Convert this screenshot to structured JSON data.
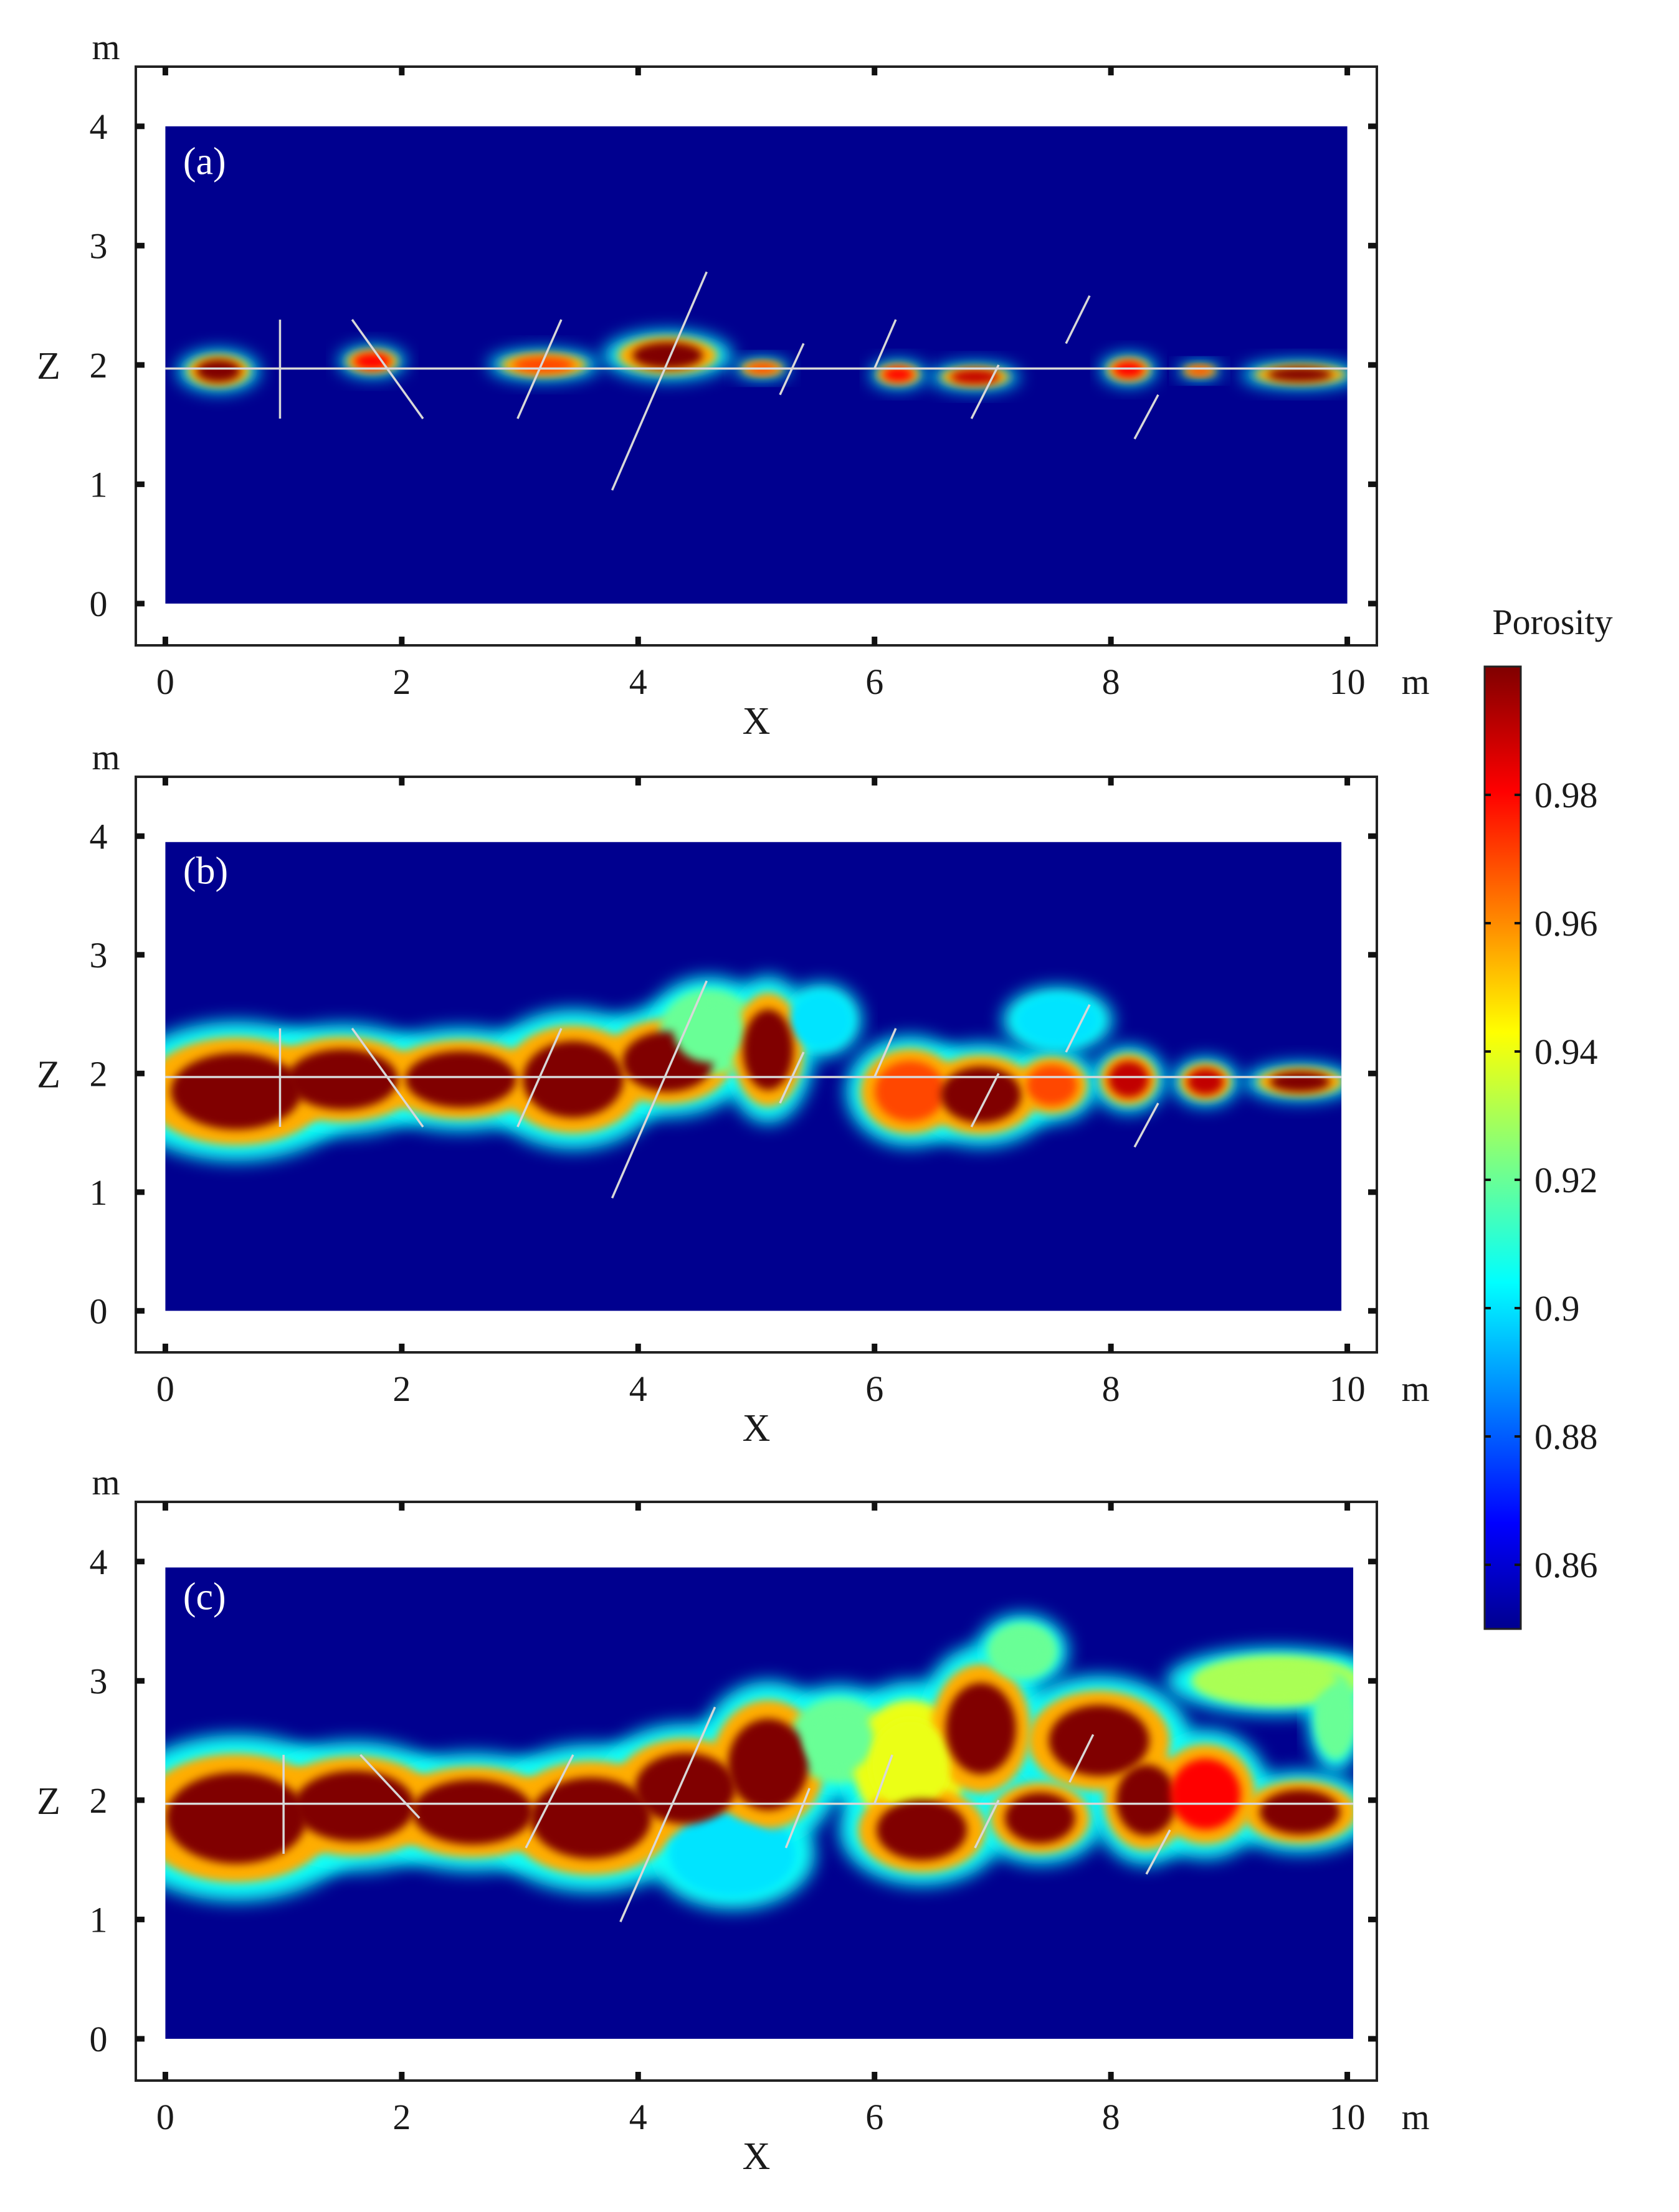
{
  "colors": {
    "background": "#00008f",
    "fracture_line": "#d8d8d8",
    "frame": "#222222"
  },
  "colorbar": {
    "title": "Porosity",
    "min": 0.85,
    "max": 1.0,
    "tick_values": [
      0.86,
      0.88,
      0.9,
      0.92,
      0.94,
      0.96,
      0.98
    ],
    "tick_labels": [
      "0.86",
      "0.88",
      "0.9",
      "0.92",
      "0.94",
      "0.96",
      "0.98"
    ]
  },
  "chart_data": [
    {
      "type": "heatmap",
      "panel_label": "(a)",
      "xlabel": "X",
      "ylabel": "Z",
      "x_unit": "m",
      "y_unit": "m",
      "xlim": [
        -0.25,
        10.25
      ],
      "ylim": [
        -0.35,
        4.5
      ],
      "domain_x": [
        0,
        10
      ],
      "domain_y": [
        0,
        4
      ],
      "x_ticks": [
        0,
        2,
        4,
        6,
        8,
        10
      ],
      "x_tick_labels": [
        "0",
        "2",
        "4",
        "6",
        "8",
        "10"
      ],
      "y_ticks": [
        0,
        1,
        2,
        3,
        4
      ],
      "y_tick_labels": [
        "0",
        "1",
        "2",
        "3",
        "4"
      ],
      "fracture_lines": [
        [
          [
            0,
            1.97
          ],
          [
            10,
            1.97
          ]
        ],
        [
          [
            0.97,
            1.55
          ],
          [
            0.97,
            2.38
          ]
        ],
        [
          [
            1.58,
            2.38
          ],
          [
            2.18,
            1.55
          ]
        ],
        [
          [
            2.98,
            1.55
          ],
          [
            3.35,
            2.38
          ]
        ],
        [
          [
            3.78,
            0.95
          ],
          [
            4.58,
            2.78
          ]
        ],
        [
          [
            5.2,
            1.75
          ],
          [
            5.4,
            2.18
          ]
        ],
        [
          [
            6.0,
            1.97
          ],
          [
            6.18,
            2.38
          ]
        ],
        [
          [
            6.82,
            1.55
          ],
          [
            7.05,
            2.0
          ]
        ],
        [
          [
            7.62,
            2.18
          ],
          [
            7.82,
            2.58
          ]
        ],
        [
          [
            8.2,
            1.38
          ],
          [
            8.4,
            1.75
          ]
        ]
      ],
      "porosity_zones": [
        {
          "x": 0.45,
          "z": 1.95,
          "rx": 0.22,
          "rz": 0.11,
          "porosity": 1.0
        },
        {
          "x": 1.75,
          "z": 2.03,
          "rx": 0.18,
          "rz": 0.08,
          "porosity": 0.98
        },
        {
          "x": 3.2,
          "z": 2.0,
          "rx": 0.3,
          "rz": 0.08,
          "porosity": 0.97
        },
        {
          "x": 4.25,
          "z": 2.08,
          "rx": 0.35,
          "rz": 0.13,
          "porosity": 1.0
        },
        {
          "x": 5.05,
          "z": 1.97,
          "rx": 0.15,
          "rz": 0.05,
          "porosity": 0.97
        },
        {
          "x": 6.2,
          "z": 1.92,
          "rx": 0.15,
          "rz": 0.07,
          "porosity": 0.98
        },
        {
          "x": 6.85,
          "z": 1.9,
          "rx": 0.24,
          "rz": 0.07,
          "porosity": 0.99
        },
        {
          "x": 8.15,
          "z": 1.96,
          "rx": 0.15,
          "rz": 0.08,
          "porosity": 0.98
        },
        {
          "x": 8.75,
          "z": 1.95,
          "rx": 0.12,
          "rz": 0.04,
          "porosity": 0.97
        },
        {
          "x": 9.6,
          "z": 1.92,
          "rx": 0.32,
          "rz": 0.07,
          "porosity": 1.0
        }
      ]
    },
    {
      "type": "heatmap",
      "panel_label": "(b)",
      "xlabel": "X",
      "ylabel": "Z",
      "x_unit": "m",
      "y_unit": "m",
      "xlim": [
        -0.25,
        10.25
      ],
      "ylim": [
        -0.35,
        4.5
      ],
      "domain_x": [
        0,
        9.95
      ],
      "domain_y": [
        0,
        3.95
      ],
      "x_ticks": [
        0,
        2,
        4,
        6,
        8,
        10
      ],
      "x_tick_labels": [
        "0",
        "2",
        "4",
        "6",
        "8",
        "10"
      ],
      "y_ticks": [
        0,
        1,
        2,
        3,
        4
      ],
      "y_tick_labels": [
        "0",
        "1",
        "2",
        "3",
        "4"
      ],
      "fracture_lines": [
        [
          [
            0,
            1.97
          ],
          [
            9.95,
            1.97
          ]
        ],
        [
          [
            0.97,
            1.55
          ],
          [
            0.97,
            2.38
          ]
        ],
        [
          [
            1.58,
            2.38
          ],
          [
            2.18,
            1.55
          ]
        ],
        [
          [
            2.98,
            1.55
          ],
          [
            3.35,
            2.38
          ]
        ],
        [
          [
            3.78,
            0.95
          ],
          [
            4.58,
            2.78
          ]
        ],
        [
          [
            5.2,
            1.75
          ],
          [
            5.4,
            2.18
          ]
        ],
        [
          [
            6.0,
            1.97
          ],
          [
            6.18,
            2.38
          ]
        ],
        [
          [
            6.82,
            1.55
          ],
          [
            7.05,
            2.0
          ]
        ],
        [
          [
            7.62,
            2.18
          ],
          [
            7.82,
            2.58
          ]
        ],
        [
          [
            8.2,
            1.38
          ],
          [
            8.4,
            1.75
          ]
        ]
      ],
      "porosity_zones": [
        {
          "x": 0.6,
          "z": 1.85,
          "rx": 0.65,
          "rz": 0.38,
          "porosity": 1.0
        },
        {
          "x": 1.5,
          "z": 1.95,
          "rx": 0.55,
          "rz": 0.3,
          "porosity": 1.0
        },
        {
          "x": 2.5,
          "z": 1.95,
          "rx": 0.55,
          "rz": 0.28,
          "porosity": 1.0
        },
        {
          "x": 3.45,
          "z": 1.95,
          "rx": 0.5,
          "rz": 0.38,
          "porosity": 1.0
        },
        {
          "x": 4.25,
          "z": 2.1,
          "rx": 0.45,
          "rz": 0.3,
          "porosity": 1.0
        },
        {
          "x": 4.6,
          "z": 2.35,
          "rx": 0.35,
          "rz": 0.3,
          "porosity": 0.92
        },
        {
          "x": 5.1,
          "z": 2.2,
          "rx": 0.25,
          "rz": 0.4,
          "porosity": 1.0
        },
        {
          "x": 5.55,
          "z": 2.45,
          "rx": 0.22,
          "rz": 0.2,
          "porosity": 0.9
        },
        {
          "x": 6.3,
          "z": 1.85,
          "rx": 0.35,
          "rz": 0.3,
          "porosity": 0.97
        },
        {
          "x": 6.9,
          "z": 1.82,
          "rx": 0.4,
          "rz": 0.28,
          "porosity": 1.0
        },
        {
          "x": 7.5,
          "z": 1.9,
          "rx": 0.25,
          "rz": 0.2,
          "porosity": 0.97
        },
        {
          "x": 7.55,
          "z": 2.45,
          "rx": 0.3,
          "rz": 0.18,
          "porosity": 0.9
        },
        {
          "x": 8.15,
          "z": 1.95,
          "rx": 0.2,
          "rz": 0.18,
          "porosity": 0.99
        },
        {
          "x": 8.8,
          "z": 1.93,
          "rx": 0.18,
          "rz": 0.13,
          "porosity": 0.99
        },
        {
          "x": 9.6,
          "z": 1.93,
          "rx": 0.3,
          "rz": 0.1,
          "porosity": 1.0
        }
      ]
    },
    {
      "type": "heatmap",
      "panel_label": "(c)",
      "xlabel": "X",
      "ylabel": "Z",
      "x_unit": "m",
      "y_unit": "m",
      "xlim": [
        -0.25,
        10.25
      ],
      "ylim": [
        -0.35,
        4.5
      ],
      "domain_x": [
        0,
        10.05
      ],
      "domain_y": [
        0,
        3.95
      ],
      "x_ticks": [
        0,
        2,
        4,
        6,
        8,
        10
      ],
      "x_tick_labels": [
        "0",
        "2",
        "4",
        "6",
        "8",
        "10"
      ],
      "y_ticks": [
        0,
        1,
        2,
        3,
        4
      ],
      "y_tick_labels": [
        "0",
        "1",
        "2",
        "3",
        "4"
      ],
      "fracture_lines": [
        [
          [
            0,
            1.97
          ],
          [
            10.05,
            1.97
          ]
        ],
        [
          [
            1.0,
            1.55
          ],
          [
            1.0,
            2.38
          ]
        ],
        [
          [
            1.65,
            2.38
          ],
          [
            2.15,
            1.85
          ]
        ],
        [
          [
            3.05,
            1.6
          ],
          [
            3.45,
            2.38
          ]
        ],
        [
          [
            3.85,
            0.98
          ],
          [
            4.65,
            2.78
          ]
        ],
        [
          [
            5.25,
            1.6
          ],
          [
            5.45,
            2.1
          ]
        ],
        [
          [
            6.0,
            1.97
          ],
          [
            6.15,
            2.38
          ]
        ],
        [
          [
            6.85,
            1.6
          ],
          [
            7.05,
            2.0
          ]
        ],
        [
          [
            7.65,
            2.15
          ],
          [
            7.85,
            2.55
          ]
        ],
        [
          [
            8.3,
            1.38
          ],
          [
            8.5,
            1.75
          ]
        ]
      ],
      "porosity_zones": [
        {
          "x": 0.6,
          "z": 1.85,
          "rx": 0.7,
          "rz": 0.45,
          "porosity": 1.0
        },
        {
          "x": 1.6,
          "z": 1.95,
          "rx": 0.6,
          "rz": 0.35,
          "porosity": 1.0
        },
        {
          "x": 2.6,
          "z": 1.9,
          "rx": 0.6,
          "rz": 0.32,
          "porosity": 1.0
        },
        {
          "x": 3.6,
          "z": 1.85,
          "rx": 0.6,
          "rz": 0.4,
          "porosity": 1.0
        },
        {
          "x": 4.4,
          "z": 2.1,
          "rx": 0.5,
          "rz": 0.35,
          "porosity": 1.0
        },
        {
          "x": 4.8,
          "z": 1.55,
          "rx": 0.45,
          "rz": 0.3,
          "porosity": 0.9
        },
        {
          "x": 5.1,
          "z": 2.3,
          "rx": 0.4,
          "rz": 0.45,
          "porosity": 1.0
        },
        {
          "x": 5.7,
          "z": 2.5,
          "rx": 0.35,
          "rz": 0.3,
          "porosity": 0.92
        },
        {
          "x": 6.3,
          "z": 2.3,
          "rx": 0.4,
          "rz": 0.45,
          "porosity": 0.94
        },
        {
          "x": 6.4,
          "z": 1.75,
          "rx": 0.45,
          "rz": 0.3,
          "porosity": 1.0
        },
        {
          "x": 6.9,
          "z": 2.6,
          "rx": 0.35,
          "rz": 0.45,
          "porosity": 1.0
        },
        {
          "x": 7.25,
          "z": 3.25,
          "rx": 0.25,
          "rz": 0.2,
          "porosity": 0.92
        },
        {
          "x": 7.4,
          "z": 1.85,
          "rx": 0.35,
          "rz": 0.25,
          "porosity": 1.0
        },
        {
          "x": 7.9,
          "z": 2.5,
          "rx": 0.5,
          "rz": 0.35,
          "porosity": 1.0
        },
        {
          "x": 8.3,
          "z": 2.0,
          "rx": 0.3,
          "rz": 0.35,
          "porosity": 1.0
        },
        {
          "x": 8.8,
          "z": 2.05,
          "rx": 0.35,
          "rz": 0.35,
          "porosity": 0.98
        },
        {
          "x": 9.4,
          "z": 3.0,
          "rx": 0.6,
          "rz": 0.18,
          "porosity": 0.93
        },
        {
          "x": 9.6,
          "z": 1.9,
          "rx": 0.4,
          "rz": 0.22,
          "porosity": 1.0
        },
        {
          "x": 9.9,
          "z": 2.7,
          "rx": 0.15,
          "rz": 0.3,
          "porosity": 0.92
        }
      ]
    }
  ]
}
